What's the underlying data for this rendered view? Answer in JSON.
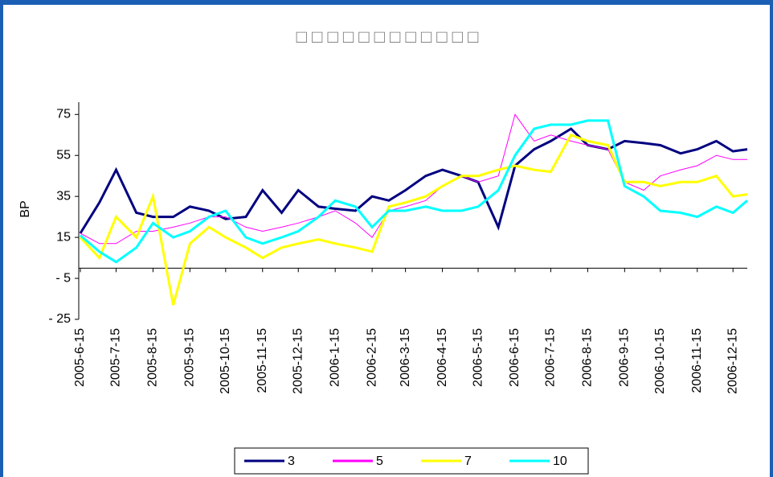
{
  "chart_data": {
    "type": "line",
    "title": "□ □ □ □ □ □ □ □ □ □ □ □",
    "y_label": "BP",
    "x": [
      "2005-6-15",
      "2005-7-1",
      "2005-7-15",
      "2005-8-1",
      "2005-8-15",
      "2005-9-1",
      "2005-9-15",
      "2005-10-1",
      "2005-10-15",
      "2005-11-1",
      "2005-11-15",
      "2005-12-1",
      "2005-12-15",
      "2006-1-1",
      "2006-1-15",
      "2006-2-1",
      "2006-2-15",
      "2006-3-1",
      "2006-3-15",
      "2006-4-1",
      "2006-4-15",
      "2006-5-1",
      "2006-5-15",
      "2006-6-1",
      "2006-6-15",
      "2006-7-1",
      "2006-7-15",
      "2006-8-1",
      "2006-8-15",
      "2006-9-1",
      "2006-9-15",
      "2006-10-1",
      "2006-10-15",
      "2006-11-1",
      "2006-11-15",
      "2006-12-1",
      "2006-12-15",
      "2006-12-27"
    ],
    "series": [
      {
        "name": "3",
        "color": "#000080",
        "width": 3,
        "values": [
          17,
          32,
          48,
          27,
          25,
          25,
          30,
          28,
          24,
          25,
          38,
          27,
          38,
          30,
          29,
          28,
          35,
          33,
          38,
          45,
          48,
          45,
          42,
          20,
          50,
          58,
          62,
          68,
          60,
          58,
          62,
          61,
          60,
          56,
          58,
          62,
          57,
          58
        ]
      },
      {
        "name": "5",
        "color": "#ff00ff",
        "width": 1,
        "values": [
          17,
          12,
          12,
          18,
          18,
          20,
          22,
          25,
          25,
          20,
          18,
          20,
          22,
          25,
          28,
          22,
          15,
          28,
          30,
          33,
          40,
          45,
          42,
          45,
          75,
          62,
          65,
          62,
          60,
          58,
          42,
          38,
          45,
          48,
          50,
          55,
          53,
          53
        ]
      },
      {
        "name": "7",
        "color": "#ffff00",
        "width": 3,
        "values": [
          15,
          5,
          25,
          15,
          35,
          -18,
          12,
          20,
          15,
          10,
          5,
          10,
          12,
          14,
          12,
          10,
          8,
          30,
          32,
          35,
          40,
          45,
          45,
          48,
          50,
          48,
          47,
          65,
          62,
          60,
          42,
          42,
          40,
          42,
          42,
          45,
          35,
          36
        ]
      },
      {
        "name": "10",
        "color": "#00ffff",
        "width": 3,
        "values": [
          16,
          8,
          3,
          10,
          22,
          15,
          18,
          25,
          28,
          15,
          12,
          15,
          18,
          25,
          33,
          30,
          20,
          28,
          28,
          30,
          28,
          28,
          30,
          38,
          55,
          68,
          70,
          70,
          72,
          72,
          40,
          35,
          28,
          27,
          25,
          30,
          27,
          33
        ]
      }
    ],
    "ylim": [
      -25,
      81
    ],
    "yticks": [
      75,
      55,
      35,
      15,
      {
        "value": -5,
        "label": "- 5"
      },
      {
        "value": -25,
        "label": "- 25"
      }
    ],
    "xlim": [
      "2005-6-15",
      "2006-12-27"
    ],
    "xticks": [
      "2005-6-15",
      "2005-7-15",
      "2005-8-15",
      "2005-9-15",
      "2005-10-15",
      "2005-11-15",
      "2005-12-15",
      "2006-1-15",
      "2006-2-15",
      "2006-3-15",
      "2006-4-15",
      "2006-5-15",
      "2006-6-15",
      "2006-7-15",
      "2006-8-15",
      "2006-9-15",
      "2006-10-15",
      "2006-11-15",
      "2006-12-15"
    ],
    "grid": false,
    "legend": "bottom"
  }
}
